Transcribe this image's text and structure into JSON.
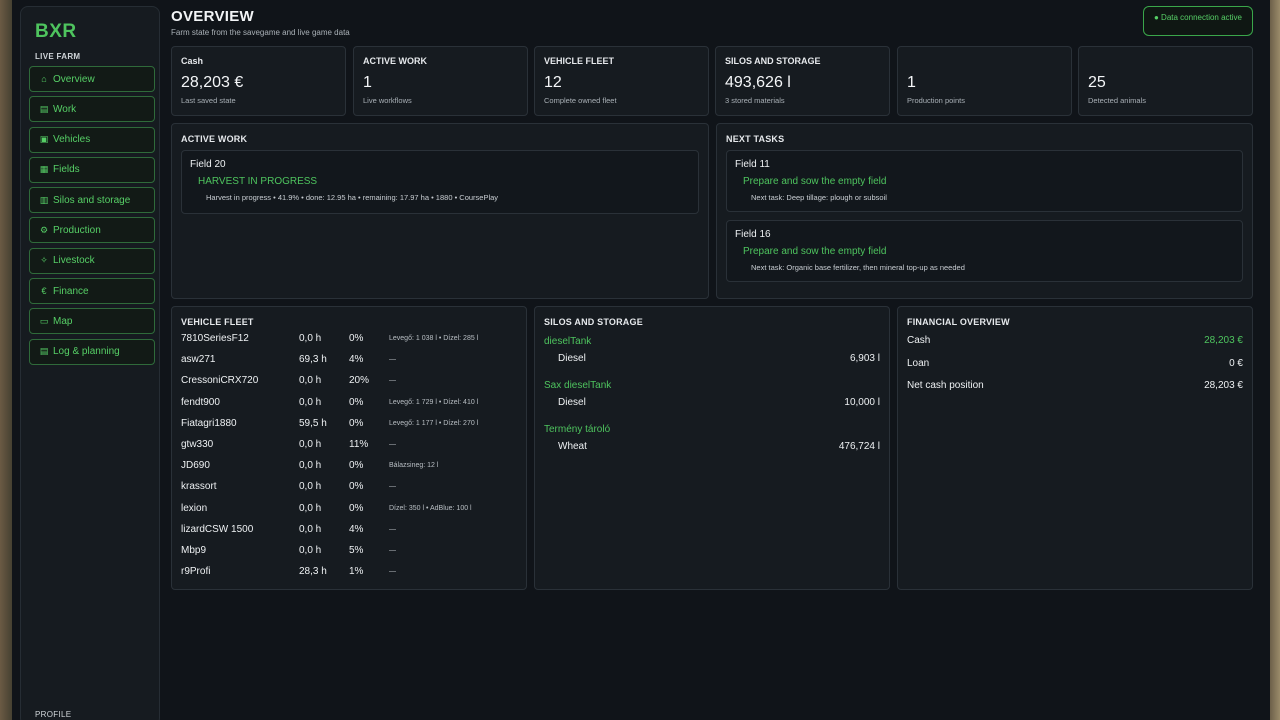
{
  "sidebar": {
    "brand": "BXR",
    "subtitle": "LIVE FARM",
    "items": [
      {
        "icon": "home-icon",
        "glyph": "⌂",
        "label": "Overview"
      },
      {
        "icon": "work-icon",
        "glyph": "▤",
        "label": "Work"
      },
      {
        "icon": "vehicle-icon",
        "glyph": "▣",
        "label": "Vehicles"
      },
      {
        "icon": "fields-icon",
        "glyph": "▦",
        "label": "Fields"
      },
      {
        "icon": "silo-icon",
        "glyph": "▥",
        "label": "Silos and storage"
      },
      {
        "icon": "production-icon",
        "glyph": "⚙",
        "label": "Production"
      },
      {
        "icon": "livestock-icon",
        "glyph": "✧",
        "label": "Livestock"
      },
      {
        "icon": "finance-icon",
        "glyph": "€",
        "label": "Finance"
      },
      {
        "icon": "map-icon",
        "glyph": "▭",
        "label": "Map"
      },
      {
        "icon": "log-icon",
        "glyph": "▤",
        "label": "Log & planning"
      }
    ],
    "profile": "PROFILE"
  },
  "header": {
    "title": "OVERVIEW",
    "subtitle": "Farm state from the savegame and live game data",
    "connection": "● Data connection active"
  },
  "kpis": [
    {
      "title": "Cash",
      "value": "28,203 €",
      "sub": "Last saved state"
    },
    {
      "title": "ACTIVE WORK",
      "value": "1",
      "sub": "Live workflows"
    },
    {
      "title": "VEHICLE FLEET",
      "value": "12",
      "sub": "Complete owned fleet"
    },
    {
      "title": "SILOS AND STORAGE",
      "value": "493,626 l",
      "sub": "3 stored materials"
    },
    {
      "title": "",
      "value": "1",
      "sub": "Production points"
    },
    {
      "title": "",
      "value": "25",
      "sub": "Detected animals"
    }
  ],
  "active_work": {
    "title": "ACTIVE WORK",
    "field": "Field 20",
    "status": "HARVEST IN PROGRESS",
    "detail": "Harvest in progress • 41.9% • done: 12.95 ha • remaining: 17.97 ha • 1880 • CoursePlay"
  },
  "next_tasks": {
    "title": "NEXT TASKS",
    "items": [
      {
        "field": "Field 11",
        "action": "Prepare and sow the empty field",
        "detail": "Next task: Deep tillage: plough or subsoil"
      },
      {
        "field": "Field 16",
        "action": "Prepare and sow the empty field",
        "detail": "Next task: Organic base fertilizer, then mineral top-up as needed"
      }
    ]
  },
  "fleet": {
    "title": "VEHICLE FLEET",
    "rows": [
      {
        "name": "7810SeriesF12",
        "hours": "0,0 h",
        "pct": "0%",
        "note": "Levegő: 1 038 l • Dízel: 285 l"
      },
      {
        "name": "asw271",
        "hours": "69,3 h",
        "pct": "4%",
        "note": "—"
      },
      {
        "name": "CressoniCRX720",
        "hours": "0,0 h",
        "pct": "20%",
        "note": "—"
      },
      {
        "name": "fendt900",
        "hours": "0,0 h",
        "pct": "0%",
        "note": "Levegő: 1 729 l • Dízel: 410 l"
      },
      {
        "name": "Fiatagri1880",
        "hours": "59,5 h",
        "pct": "0%",
        "note": "Levegő: 1 177 l • Dízel: 270 l"
      },
      {
        "name": "gtw330",
        "hours": "0,0 h",
        "pct": "11%",
        "note": "—"
      },
      {
        "name": "JD690",
        "hours": "0,0 h",
        "pct": "0%",
        "note": "Bálazsineg: 12 l"
      },
      {
        "name": "krassort",
        "hours": "0,0 h",
        "pct": "0%",
        "note": "—"
      },
      {
        "name": "lexion",
        "hours": "0,0 h",
        "pct": "0%",
        "note": "Dízel: 350 l • AdBlue: 100 l"
      },
      {
        "name": "lizardCSW 1500",
        "hours": "0,0 h",
        "pct": "4%",
        "note": "—"
      },
      {
        "name": "Mbp9",
        "hours": "0,0 h",
        "pct": "5%",
        "note": "—"
      },
      {
        "name": "r9Profi",
        "hours": "28,3 h",
        "pct": "1%",
        "note": "—"
      }
    ]
  },
  "silos": {
    "title": "SILOS AND STORAGE",
    "groups": [
      {
        "name": "dieselTank",
        "item": "Diesel",
        "value": "6,903 l"
      },
      {
        "name": "Sax dieselTank",
        "item": "Diesel",
        "value": "10,000 l"
      },
      {
        "name": "Termény tároló",
        "item": "Wheat",
        "value": "476,724 l"
      }
    ]
  },
  "finance": {
    "title": "FINANCIAL OVERVIEW",
    "rows": [
      {
        "label": "Cash",
        "value": "28,203 €",
        "color": "#4ec45e"
      },
      {
        "label": "Loan",
        "value": "0 €",
        "color": "#eef1f3"
      },
      {
        "label": "Net cash position",
        "value": "28,203 €",
        "color": "#eef1f3"
      }
    ]
  }
}
